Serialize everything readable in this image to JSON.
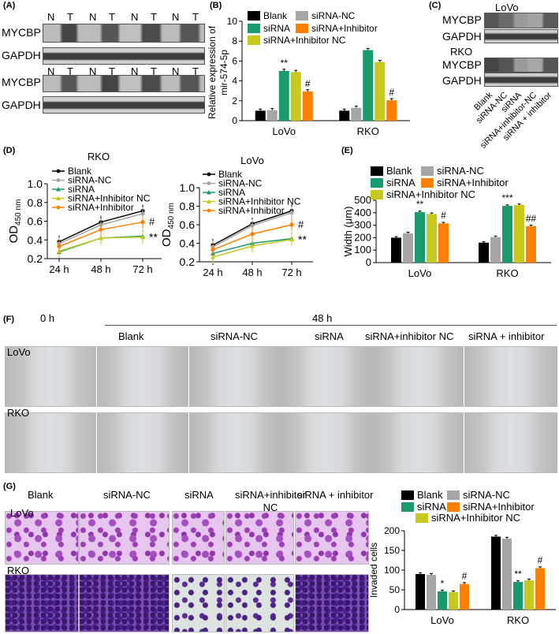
{
  "panels": {
    "A": "(A)",
    "B": "(B)",
    "C": "(C)",
    "D": "(D)",
    "E": "(E)",
    "F": "(F)",
    "G": "(G)"
  },
  "panelA": {
    "rows": [
      {
        "label": "MYCBP",
        "lanes": [
          "N",
          "T",
          "N",
          "T",
          "N",
          "T",
          "N",
          "T"
        ]
      },
      {
        "label": "GAPDH"
      },
      {
        "label": "MYCBP",
        "lanes": [
          "N",
          "T",
          "N",
          "T",
          "N",
          "T",
          "N",
          "T"
        ]
      },
      {
        "label": "GAPDH"
      }
    ]
  },
  "panelC": {
    "lovo": "LoVo",
    "rko": "RKO",
    "mycbp": "MYCBP",
    "gapdh": "GAPDH",
    "lanes": [
      "Blank",
      "siRNA-NC",
      "siRNA",
      "siRNA+inhibitor-NC",
      "siRNA + inhibitor"
    ]
  },
  "colors": {
    "blank": "#000000",
    "nc": "#a6a6a6",
    "sirna": "#1a9b6b",
    "inhNC": "#c8c81e",
    "inh": "#ff8000",
    "bar_tan": "#c7bf92"
  },
  "chart_data": [
    {
      "id": "B",
      "type": "bar",
      "ylabel": "Relative expression of mir-574-5p",
      "ylim": [
        0,
        10
      ],
      "yticks": [
        0,
        2,
        4,
        6,
        8,
        10
      ],
      "categories": [
        "LoVo",
        "RKO"
      ],
      "legend": [
        "Blank",
        "siRNA-NC",
        "siRNA",
        "siRNA+Inhibitor",
        "siRNA+Inhibitor NC"
      ],
      "series": [
        {
          "name": "Blank",
          "values": [
            1.0,
            1.0
          ]
        },
        {
          "name": "siRNA-NC",
          "values": [
            1.05,
            1.3
          ]
        },
        {
          "name": "siRNA",
          "values": [
            5.0,
            7.1
          ]
        },
        {
          "name": "siRNA+Inhibitor NC",
          "values": [
            4.9,
            5.9
          ]
        },
        {
          "name": "siRNA+Inhibitor",
          "values": [
            2.95,
            2.05
          ]
        }
      ],
      "annotations": [
        {
          "text": "**",
          "category": "LoVo",
          "series": "siRNA"
        },
        {
          "text": "#",
          "category": "LoVo",
          "series": "siRNA+Inhibitor"
        },
        {
          "text": "#",
          "category": "RKO",
          "series": "siRNA+Inhibitor"
        }
      ]
    },
    {
      "id": "D1",
      "type": "line",
      "title": "RKO",
      "ylabel": "OD450 nm",
      "xcategories": [
        "24 h",
        "48 h",
        "72 h"
      ],
      "ylim": [
        0.2,
        1.0
      ],
      "yticks": [
        "0.2",
        "0.4",
        "0.6",
        "0.8",
        "1.0"
      ],
      "legend": [
        "Blank",
        "siRNA-NC",
        "siRNA",
        "siRNA+Inhibitor NC",
        "siRNA+Inhibitor"
      ],
      "series": [
        {
          "name": "Blank",
          "values": [
            0.38,
            0.59,
            0.71
          ]
        },
        {
          "name": "siRNA-NC",
          "values": [
            0.36,
            0.56,
            0.68
          ]
        },
        {
          "name": "siRNA",
          "values": [
            0.27,
            0.42,
            0.44
          ]
        },
        {
          "name": "siRNA+Inhibitor NC",
          "values": [
            0.28,
            0.42,
            0.43
          ]
        },
        {
          "name": "siRNA+Inhibitor",
          "values": [
            0.33,
            0.51,
            0.59
          ]
        }
      ],
      "annotations": [
        "#",
        "**"
      ]
    },
    {
      "id": "D2",
      "type": "line",
      "title": "LoVo",
      "ylabel": "OD450 nm",
      "xcategories": [
        "24 h",
        "48 h",
        "72 h"
      ],
      "ylim": [
        0.2,
        1.0
      ],
      "yticks": [
        "0.2",
        "0.4",
        "0.6",
        "0.8",
        "1.0"
      ],
      "legend": [
        "Blank",
        "siRNA-NC",
        "siRNA",
        "siRNA+Inhibitor NC",
        "siRNA+Inhibitor"
      ],
      "series": [
        {
          "name": "Blank",
          "values": [
            0.38,
            0.61,
            0.75
          ]
        },
        {
          "name": "siRNA-NC",
          "values": [
            0.36,
            0.59,
            0.73
          ]
        },
        {
          "name": "siRNA",
          "values": [
            0.29,
            0.4,
            0.45
          ]
        },
        {
          "name": "siRNA+Inhibitor NC",
          "values": [
            0.25,
            0.37,
            0.44
          ]
        },
        {
          "name": "siRNA+Inhibitor",
          "values": [
            0.33,
            0.5,
            0.6
          ]
        }
      ],
      "annotations": [
        "#",
        "**"
      ]
    },
    {
      "id": "E",
      "type": "bar",
      "ylabel": "Width (μm)",
      "ylim": [
        0,
        500
      ],
      "yticks": [
        0,
        100,
        200,
        300,
        400,
        500
      ],
      "categories": [
        "LoVo",
        "RKO"
      ],
      "legend": [
        "Blank",
        "siRNA-NC",
        "siRNA",
        "siRNA+Inhibitor",
        "siRNA+Inhibitor NC"
      ],
      "series": [
        {
          "name": "Blank",
          "values": [
            200,
            160
          ]
        },
        {
          "name": "siRNA-NC",
          "values": [
            235,
            205
          ]
        },
        {
          "name": "siRNA",
          "values": [
            405,
            455
          ]
        },
        {
          "name": "siRNA+Inhibitor NC",
          "values": [
            390,
            462
          ]
        },
        {
          "name": "siRNA+Inhibitor",
          "values": [
            315,
            292
          ]
        }
      ],
      "annotations": [
        {
          "text": "**",
          "category": "LoVo",
          "series": "siRNA"
        },
        {
          "text": "#",
          "category": "LoVo",
          "series": "siRNA+Inhibitor"
        },
        {
          "text": "***",
          "category": "RKO",
          "series": "siRNA"
        },
        {
          "text": "##",
          "category": "RKO",
          "series": "siRNA+Inhibitor"
        }
      ]
    },
    {
      "id": "G",
      "type": "bar",
      "ylabel": "Invaded cells",
      "ylim": [
        0,
        200
      ],
      "yticks": [
        0,
        50,
        100,
        150,
        200
      ],
      "categories": [
        "LoVo",
        "RKO"
      ],
      "legend": [
        "Blank",
        "siRNA-NC",
        "siRNA",
        "siRNA+Inhibitor",
        "siRNA+Inhibitor NC"
      ],
      "series": [
        {
          "name": "Blank",
          "values": [
            90,
            185
          ]
        },
        {
          "name": "siRNA-NC",
          "values": [
            88,
            180
          ]
        },
        {
          "name": "siRNA",
          "values": [
            46,
            70
          ]
        },
        {
          "name": "siRNA+Inhibitor NC",
          "values": [
            44,
            74
          ]
        },
        {
          "name": "siRNA+Inhibitor",
          "values": [
            65,
            105
          ]
        }
      ],
      "annotations": [
        {
          "text": "*",
          "category": "LoVo",
          "series": "siRNA"
        },
        {
          "text": "#",
          "category": "LoVo",
          "series": "siRNA+Inhibitor"
        },
        {
          "text": "**",
          "category": "RKO",
          "series": "siRNA"
        },
        {
          "text": "#",
          "category": "RKO",
          "series": "siRNA+Inhibitor"
        }
      ]
    }
  ],
  "panelF": {
    "lovo": "LoVo",
    "rko": "RKO",
    "time0": "0 h",
    "time48": "48 h",
    "columns": [
      "Blank",
      "siRNA-NC",
      "siRNA",
      "siRNA+inhibitor NC",
      "siRNA + inhibitor"
    ]
  },
  "panelG": {
    "lovo": "LoVo",
    "rko": "RKO",
    "columns": [
      "Blank",
      "siRNA-NC",
      "siRNA",
      "siRNA+inhibitor NC",
      "siRNA + inhibitor"
    ]
  }
}
